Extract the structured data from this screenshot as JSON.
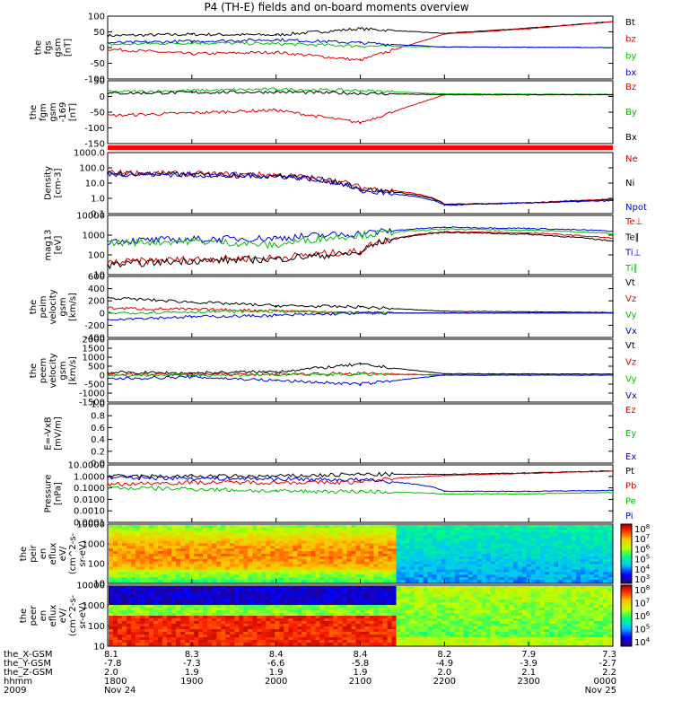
{
  "title": "P4 (TH-E) fields and on-board moments overview",
  "panels": [
    {
      "id": "fgs",
      "ylabel": [
        "the",
        "fgs",
        "gsm",
        "[nT]"
      ],
      "yticks": [
        "100",
        "50",
        "0",
        "-50",
        "-100"
      ],
      "ylim": [
        -100,
        100
      ],
      "legend": [
        {
          "name": "Bt",
          "color": "#000000"
        },
        {
          "name": "bz",
          "color": "#e00000"
        },
        {
          "name": "by",
          "color": "#00c000"
        },
        {
          "name": "bx",
          "color": "#0000e0"
        }
      ]
    },
    {
      "id": "fgm",
      "ylabel": [
        "the",
        "fgm",
        "gsm",
        "-169",
        "[nT]"
      ],
      "yticks": [
        "50",
        "0",
        "-50",
        "-100",
        "-150"
      ],
      "ylim": [
        -175,
        50
      ],
      "legend": [
        {
          "name": "Bz",
          "color": "#e00000"
        },
        {
          "name": "By",
          "color": "#00c000"
        },
        {
          "name": "Bx",
          "color": "#000000"
        }
      ]
    },
    {
      "id": "density",
      "ylabel": [
        "Density",
        "[cm-3]"
      ],
      "yticks": [
        "1000.0",
        "100.0",
        "10.0",
        "1.0",
        "0.1"
      ],
      "ylim": [
        0.1,
        1000
      ],
      "scale": "log",
      "legend": [
        {
          "name": "Ne",
          "color": "#e00000"
        },
        {
          "name": "Ni",
          "color": "#000000"
        },
        {
          "name": "Npot",
          "color": "#0000e0"
        }
      ]
    },
    {
      "id": "temperature",
      "ylabel": [
        "mag13",
        "[eV]"
      ],
      "yticks": [
        "10000",
        "1000",
        "100",
        "10"
      ],
      "ylim": [
        10,
        10000
      ],
      "scale": "log",
      "legend": [
        {
          "name": "Te⊥",
          "color": "#e00000"
        },
        {
          "name": "Te∥",
          "color": "#000000"
        },
        {
          "name": "Ti⊥",
          "color": "#0000e0"
        },
        {
          "name": "Ti∥",
          "color": "#00c000"
        }
      ]
    },
    {
      "id": "peim-velocity",
      "ylabel": [
        "the",
        "peim",
        "velocity",
        "gsm",
        "[km/s]"
      ],
      "yticks": [
        "600",
        "400",
        "200",
        "0",
        "-200",
        "-400"
      ],
      "ylim": [
        -400,
        600
      ],
      "legend": [
        {
          "name": "Vt",
          "color": "#000000"
        },
        {
          "name": "Vz",
          "color": "#e00000"
        },
        {
          "name": "Vy",
          "color": "#00c000"
        },
        {
          "name": "Vx",
          "color": "#0000e0"
        }
      ]
    },
    {
      "id": "peem-velocity",
      "ylabel": [
        "the",
        "peem",
        "velocity",
        "gsm",
        "[km/s]"
      ],
      "yticks": [
        "2000",
        "1500",
        "1000",
        "500",
        "0",
        "-500",
        "-1000",
        "-1500"
      ],
      "ylim": [
        -1500,
        2000
      ],
      "legend": [
        {
          "name": "Vt",
          "color": "#000000"
        },
        {
          "name": "Vz",
          "color": "#e00000"
        },
        {
          "name": "Vy",
          "color": "#00c000"
        },
        {
          "name": "Vx",
          "color": "#0000e0"
        }
      ]
    },
    {
      "id": "efield",
      "ylabel": [
        "E=-VxB",
        "[mV/m]"
      ],
      "yticks": [
        "1.0",
        "0.8",
        "0.6",
        "0.4",
        "0.2",
        "0.0"
      ],
      "ylim": [
        0,
        1
      ],
      "legend": [
        {
          "name": "Ez",
          "color": "#e00000"
        },
        {
          "name": "Ey",
          "color": "#00c000"
        },
        {
          "name": "Ex",
          "color": "#0000e0"
        }
      ]
    },
    {
      "id": "pressure",
      "ylabel": [
        "Pressure",
        "[nPa]"
      ],
      "yticks": [
        "10.0000",
        "1.0000",
        "0.1000",
        "0.0100",
        "0.0010",
        "0.0001"
      ],
      "ylim": [
        0.0001,
        10
      ],
      "scale": "log",
      "legend": [
        {
          "name": "Pt",
          "color": "#000000"
        },
        {
          "name": "Pb",
          "color": "#e00000"
        },
        {
          "name": "Pe",
          "color": "#00c000"
        },
        {
          "name": "Pi",
          "color": "#0000e0"
        }
      ]
    },
    {
      "id": "peir-spectrogram",
      "ylabel": [
        "the",
        "peir",
        "en",
        "eflux",
        "eV/",
        "(cm^2-s-",
        "sr-eV)"
      ],
      "yticks": [
        "10000",
        "1000",
        "100",
        "10"
      ],
      "colorbar_ticks": [
        "10^8",
        "10^7",
        "10^6",
        "10^5",
        "10^4",
        "10^3"
      ]
    },
    {
      "id": "peer-spectrogram",
      "ylabel": [
        "the",
        "peer",
        "en",
        "eflux",
        "eV/",
        "(cm^2-s-",
        "sr-eV)"
      ],
      "yticks": [
        "10000",
        "1000",
        "100",
        "10"
      ],
      "colorbar_ticks": [
        "10^8",
        "10^7",
        "10^6",
        "10^5",
        "10^4"
      ]
    }
  ],
  "x_axis": {
    "row_labels": [
      "the_X-GSM",
      "the_Y-GSM",
      "the_Z-GSM",
      "hhmm",
      "2009"
    ],
    "columns": [
      {
        "x": "8.1",
        "y": "-7.8",
        "z": "2.0",
        "hhmm": "1800",
        "date": "Nov 24"
      },
      {
        "x": "8.3",
        "y": "-7.3",
        "z": "1.9",
        "hhmm": "1900",
        "date": ""
      },
      {
        "x": "8.4",
        "y": "-6.6",
        "z": "1.9",
        "hhmm": "2000",
        "date": ""
      },
      {
        "x": "8.4",
        "y": "-5.8",
        "z": "1.9",
        "hhmm": "2100",
        "date": ""
      },
      {
        "x": "8.2",
        "y": "-4.9",
        "z": "2.0",
        "hhmm": "2200",
        "date": ""
      },
      {
        "x": "7.9",
        "y": "-3.9",
        "z": "2.1",
        "hhmm": "2300",
        "date": ""
      },
      {
        "x": "7.3",
        "y": "-2.7",
        "z": "2.2",
        "hhmm": "0000",
        "date": "Nov 25"
      }
    ]
  },
  "chart_data": {
    "type": "line",
    "x": [
      "1800",
      "1900",
      "2000",
      "2100",
      "2200",
      "2300",
      "0000"
    ],
    "panels": [
      {
        "panel": "fgs",
        "series": [
          {
            "name": "Bt",
            "values": [
              38,
              42,
              40,
              60,
              45,
              62,
              83
            ]
          },
          {
            "name": "bz",
            "values": [
              -5,
              -20,
              -15,
              -40,
              43,
              60,
              82
            ]
          },
          {
            "name": "by",
            "values": [
              10,
              15,
              12,
              5,
              2,
              1,
              0
            ]
          },
          {
            "name": "bx",
            "values": [
              15,
              20,
              25,
              15,
              2,
              1,
              0
            ]
          }
        ]
      },
      {
        "panel": "fgm",
        "series": [
          {
            "name": "Bz",
            "values": [
              -75,
              -65,
              -55,
              -100,
              0,
              0,
              0
            ]
          },
          {
            "name": "By",
            "values": [
              10,
              15,
              20,
              15,
              3,
              2,
              2
            ]
          },
          {
            "name": "Bx",
            "values": [
              5,
              8,
              10,
              5,
              0,
              0,
              0
            ]
          }
        ]
      },
      {
        "panel": "density",
        "series": [
          {
            "name": "Ne",
            "values": [
              50,
              40,
              35,
              5,
              0.4,
              0.5,
              0.9
            ]
          },
          {
            "name": "Ni",
            "values": [
              45,
              35,
              30,
              4,
              0.4,
              0.5,
              0.8
            ]
          },
          {
            "name": "Npot",
            "values": [
              40,
              35,
              30,
              3,
              0.35,
              0.5,
              0.7
            ]
          }
        ]
      },
      {
        "panel": "temperature",
        "series": [
          {
            "name": "Te⊥",
            "values": [
              40,
              60,
              70,
              150,
              1500,
              1300,
              700
            ]
          },
          {
            "name": "Te∥",
            "values": [
              30,
              50,
              60,
              120,
              1400,
              1100,
              500
            ]
          },
          {
            "name": "Ti⊥",
            "values": [
              500,
              600,
              700,
              1200,
              2500,
              2200,
              1600
            ]
          },
          {
            "name": "Ti∥",
            "values": [
              400,
              500,
              300,
              1000,
              2000,
              1800,
              1200
            ]
          }
        ]
      },
      {
        "panel": "peim-velocity",
        "series": [
          {
            "name": "Vt",
            "values": [
              250,
              180,
              120,
              100,
              30,
              20,
              10
            ]
          },
          {
            "name": "Vz",
            "values": [
              80,
              60,
              40,
              0,
              0,
              0,
              0
            ]
          },
          {
            "name": "Vy",
            "values": [
              0,
              20,
              30,
              0,
              0,
              0,
              0
            ]
          },
          {
            "name": "Vx",
            "values": [
              -100,
              -60,
              -40,
              0,
              0,
              0,
              0
            ]
          }
        ]
      },
      {
        "panel": "peem-velocity",
        "series": [
          {
            "name": "Vt",
            "values": [
              150,
              120,
              200,
              600,
              80,
              70,
              60
            ]
          },
          {
            "name": "Vz",
            "values": [
              50,
              40,
              60,
              100,
              10,
              10,
              10
            ]
          },
          {
            "name": "Vy",
            "values": [
              0,
              10,
              20,
              40,
              0,
              0,
              0
            ]
          },
          {
            "name": "Vx",
            "values": [
              -200,
              -100,
              -300,
              -500,
              0,
              0,
              0
            ]
          }
        ]
      },
      {
        "panel": "pressure",
        "series": [
          {
            "name": "Pt",
            "values": [
              1.0,
              1.0,
              1.0,
              1.5,
              1.5,
              2.0,
              3.0
            ]
          },
          {
            "name": "Pb",
            "values": [
              0.2,
              0.3,
              0.3,
              0.3,
              1.2,
              1.8,
              2.8
            ]
          },
          {
            "name": "Pe",
            "values": [
              0.1,
              0.08,
              0.05,
              0.05,
              0.03,
              0.03,
              0.04
            ]
          },
          {
            "name": "Pi",
            "values": [
              0.8,
              0.7,
              0.6,
              0.5,
              0.05,
              0.05,
              0.06
            ]
          }
        ]
      }
    ]
  }
}
